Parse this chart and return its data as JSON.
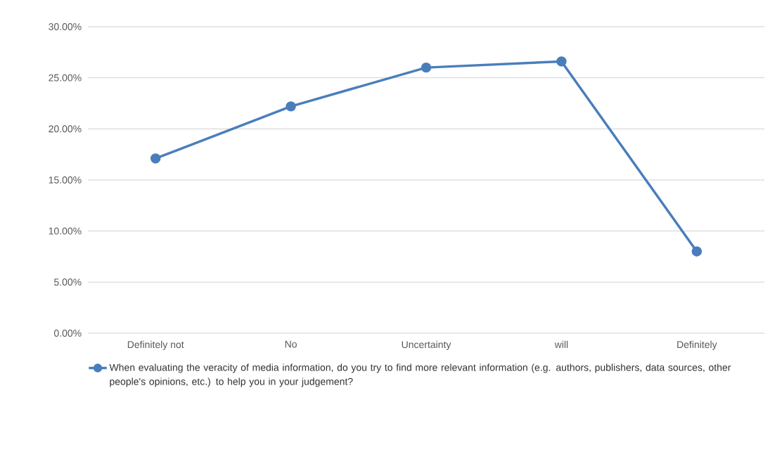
{
  "chart_data": {
    "type": "line",
    "categories": [
      "Definitely not",
      "No",
      "Uncertainty",
      "will",
      "Definitely"
    ],
    "series": [
      {
        "name": "When evaluating the veracity of media information, do you try to find more relevant information (e.g. authors, publishers, data sources, other people's opinions, etc.) to help you in your judgement?",
        "color": "#4a7ebb",
        "values": [
          17.1,
          22.2,
          26.0,
          26.6,
          8.0
        ]
      }
    ],
    "ylim": [
      0,
      30
    ],
    "yticks": [
      {
        "value": 0,
        "label": "0.00%"
      },
      {
        "value": 5,
        "label": "5.00%"
      },
      {
        "value": 10,
        "label": "10.00%"
      },
      {
        "value": 15,
        "label": "15.00%"
      },
      {
        "value": 20,
        "label": "20.00%"
      },
      {
        "value": 25,
        "label": "25.00%"
      },
      {
        "value": 30,
        "label": "30.00%"
      }
    ],
    "grid": "y",
    "legend": "bottom",
    "marker": "circle",
    "line_style": "solid"
  }
}
